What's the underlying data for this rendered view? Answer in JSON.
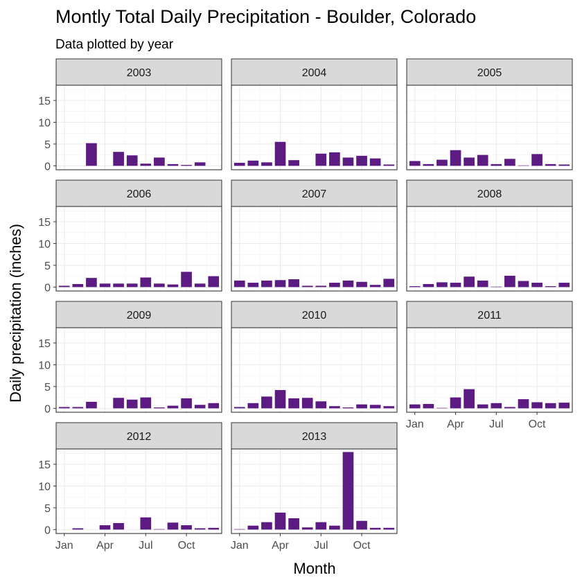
{
  "chart_data": {
    "type": "bar",
    "title": "Montly Total Daily Precipitation - Boulder, Colorado",
    "subtitle": "Data plotted by year",
    "xlabel": "Month",
    "ylabel": "Daily precipitation (inches)",
    "ylim": [
      0,
      18.5
    ],
    "y_ticks": [
      0,
      5,
      10,
      15
    ],
    "x_ticks": [
      {
        "month": 1,
        "label": "Jan"
      },
      {
        "month": 4,
        "label": "Apr"
      },
      {
        "month": 7,
        "label": "Jul"
      },
      {
        "month": 10,
        "label": "Oct"
      }
    ],
    "months": [
      1,
      2,
      3,
      4,
      5,
      6,
      7,
      8,
      9,
      10,
      11,
      12
    ],
    "bar_color": "#5c1a83",
    "panels": [
      {
        "year": "2003",
        "values": [
          0,
          0,
          5.2,
          0,
          3.2,
          2.4,
          0.5,
          1.9,
          0.4,
          0.2,
          0.8,
          0
        ]
      },
      {
        "year": "2004",
        "values": [
          0.7,
          1.2,
          0.8,
          5.5,
          1.3,
          0,
          2.8,
          3.1,
          1.9,
          2.3,
          1.7,
          0.3
        ]
      },
      {
        "year": "2005",
        "values": [
          1.1,
          0.4,
          1.4,
          3.6,
          1.9,
          2.5,
          0.4,
          1.6,
          0.1,
          2.7,
          0.4,
          0.3
        ]
      },
      {
        "year": "2006",
        "values": [
          0.3,
          0.7,
          2.1,
          0.8,
          0.8,
          0.8,
          2.2,
          0.8,
          0.6,
          3.5,
          0.8,
          2.5
        ]
      },
      {
        "year": "2007",
        "values": [
          1.5,
          1.0,
          1.5,
          1.6,
          1.8,
          0.3,
          0.3,
          1.0,
          1.5,
          1.2,
          0.5,
          1.9
        ]
      },
      {
        "year": "2008",
        "values": [
          0.2,
          0.7,
          1.1,
          1.0,
          2.4,
          1.5,
          0.1,
          2.6,
          1.4,
          1.0,
          0.2,
          1.0
        ]
      },
      {
        "year": "2009",
        "values": [
          0.3,
          0.3,
          1.5,
          0,
          2.4,
          2.0,
          2.5,
          0.2,
          0.6,
          2.3,
          0.8,
          1.2
        ]
      },
      {
        "year": "2010",
        "values": [
          0.3,
          1.2,
          2.7,
          4.2,
          2.3,
          2.4,
          1.6,
          0.5,
          0.2,
          0.9,
          0.8,
          0.5
        ]
      },
      {
        "year": "2011",
        "values": [
          0.9,
          1.0,
          0.1,
          2.5,
          4.4,
          0.9,
          1.2,
          0.3,
          2.1,
          1.4,
          1.2,
          1.3
        ]
      },
      {
        "year": "2012",
        "values": [
          0,
          0.3,
          0,
          1.0,
          1.5,
          0,
          2.8,
          0.1,
          1.6,
          1.0,
          0.3,
          0.4
        ]
      },
      {
        "year": "2013",
        "values": [
          0.1,
          0.9,
          1.7,
          3.9,
          2.6,
          0.5,
          1.7,
          0.9,
          17.8,
          2.0,
          0.4,
          0.4
        ]
      }
    ]
  }
}
